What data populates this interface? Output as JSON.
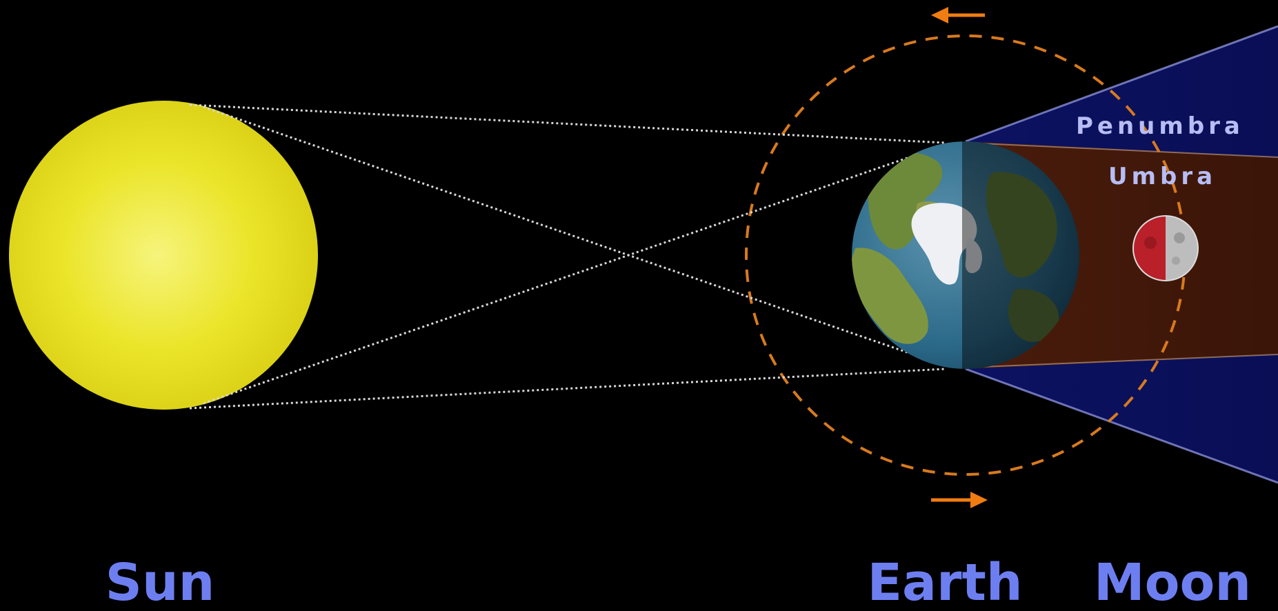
{
  "labels": {
    "penumbra": "Penumbra",
    "umbra": "Umbra",
    "sun": "Sun",
    "earth": "Earth",
    "moon": "Moon"
  },
  "colors": {
    "background": "#000000",
    "sun": "#e6e01a",
    "sun_highlight": "#f4f27a",
    "penumbra": "#0b0f5a",
    "umbra": "#3a1508",
    "orbit": "#d77a1e",
    "arrow": "#f07d12",
    "region_label": "#b7bdf4",
    "body_label": "#6d7ff0",
    "sight_lines": "#d8d8d8",
    "moon_eclipsed": "#b9202a",
    "moon_lit": "#bdbdbd"
  },
  "icons": {
    "orbit_arrow_top": "arrow-left-icon",
    "orbit_arrow_bottom": "arrow-right-icon"
  }
}
